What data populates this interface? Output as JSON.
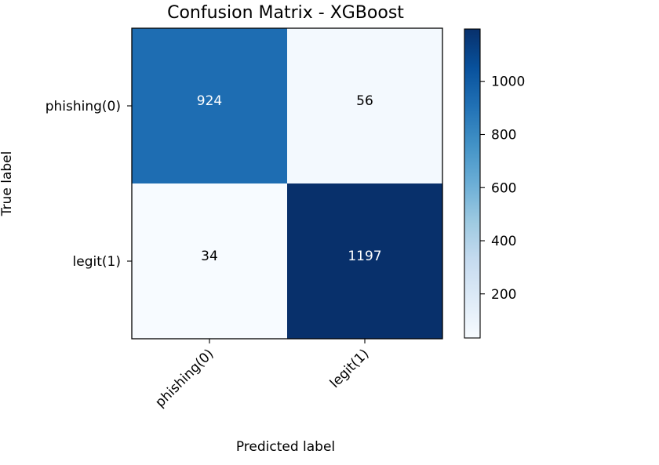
{
  "chart_data": {
    "type": "heatmap",
    "title": "Confusion Matrix - XGBoost",
    "xlabel": "Predicted label",
    "ylabel": "True label",
    "x_categories": [
      "phishing(0)",
      "legit(1)"
    ],
    "y_categories": [
      "phishing(0)",
      "legit(1)"
    ],
    "values": [
      [
        924,
        56
      ],
      [
        34,
        1197
      ]
    ],
    "colormap": "Blues",
    "color_range": [
      34,
      1197
    ],
    "colorbar_ticks": [
      200,
      400,
      600,
      800,
      1000
    ],
    "text_color_dark": "#ffffff",
    "text_color_light": "#000000",
    "grid": false
  }
}
